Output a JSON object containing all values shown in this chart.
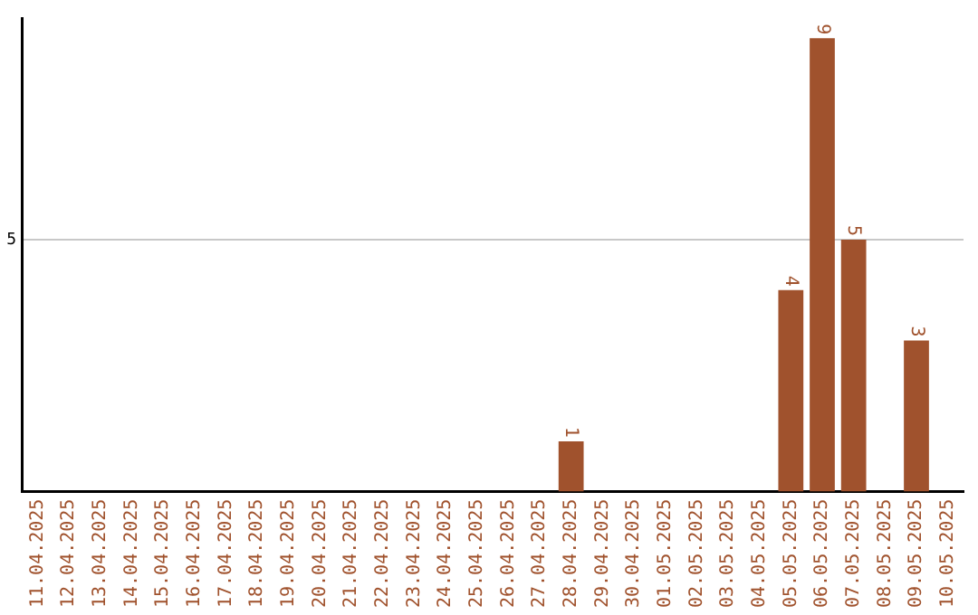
{
  "chart_data": {
    "type": "bar",
    "categories": [
      "11.04.2025",
      "12.04.2025",
      "13.04.2025",
      "14.04.2025",
      "15.04.2025",
      "16.04.2025",
      "17.04.2025",
      "18.04.2025",
      "19.04.2025",
      "20.04.2025",
      "21.04.2025",
      "22.04.2025",
      "23.04.2025",
      "24.04.2025",
      "25.04.2025",
      "26.04.2025",
      "27.04.2025",
      "28.04.2025",
      "29.04.2025",
      "30.04.2025",
      "01.05.2025",
      "02.05.2025",
      "03.05.2025",
      "04.05.2025",
      "05.05.2025",
      "06.05.2025",
      "07.05.2025",
      "08.05.2025",
      "09.05.2025",
      "10.05.2025"
    ],
    "values": [
      null,
      null,
      null,
      null,
      null,
      null,
      null,
      null,
      null,
      null,
      null,
      null,
      null,
      null,
      null,
      null,
      null,
      1,
      null,
      null,
      null,
      null,
      null,
      null,
      4,
      9,
      5,
      null,
      3,
      null
    ],
    "data_labels": true,
    "color": "#a0522d",
    "ylim": [
      0,
      9.4
    ],
    "yticks": [
      5
    ],
    "grid": "y",
    "legend": false
  }
}
